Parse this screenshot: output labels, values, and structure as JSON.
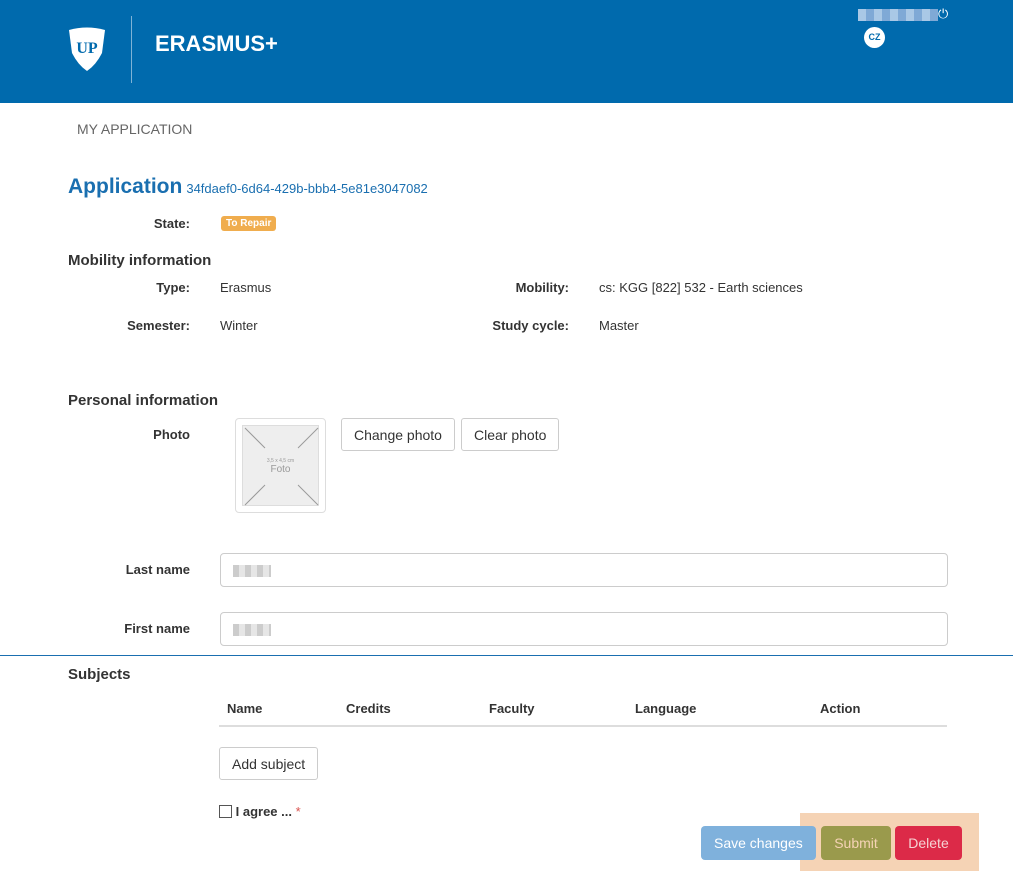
{
  "header": {
    "brand": "ERASMUS+",
    "language": "CZ",
    "power_icon": "power-icon",
    "logo_text": "UP"
  },
  "nav": {
    "my_application": "MY APPLICATION"
  },
  "application": {
    "title": "Application",
    "id": "34fdaef0-6d64-429b-bbb4-5e81e3047082",
    "state_label": "State:",
    "state": "To Repair",
    "state_color": "#f0ad4e"
  },
  "mobility": {
    "heading": "Mobility information",
    "type_label": "Type:",
    "type": "Erasmus",
    "mobility_label": "Mobility:",
    "mobility": "cs: KGG [822] 532 - Earth sciences",
    "semester_label": "Semester:",
    "semester": "Winter",
    "cycle_label": "Study cycle:",
    "cycle": "Master"
  },
  "personal": {
    "heading": "Personal information",
    "photo_label": "Photo",
    "photo_size": "3,5 x 4,5 cm",
    "photo_placeholder": "Foto",
    "change_photo": "Change photo",
    "clear_photo": "Clear photo",
    "last_name_label": "Last name",
    "first_name_label": "First name"
  },
  "subjects": {
    "heading": "Subjects",
    "columns": [
      "Name",
      "Credits",
      "Faculty",
      "Language",
      "Action"
    ],
    "add_subject": "Add subject"
  },
  "agree": {
    "label": "I agree ...",
    "required": "*"
  },
  "actions": {
    "save": "Save changes",
    "submit": "Submit",
    "delete": "Delete"
  }
}
